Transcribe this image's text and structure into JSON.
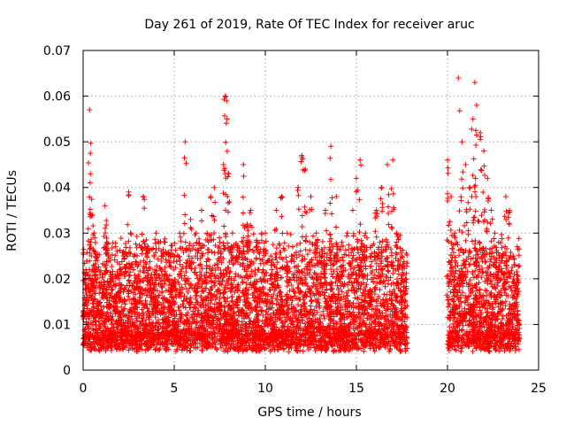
{
  "chart_data": {
    "type": "scatter",
    "title": "Day 261 of 2019, Rate Of TEC Index for receiver aruc",
    "xlabel": "GPS time / hours",
    "ylabel": "ROTI / TECUs",
    "xlim": [
      0,
      25
    ],
    "ylim": [
      0,
      0.07
    ],
    "x_ticks": [
      0,
      5,
      10,
      15,
      20,
      25
    ],
    "x_tick_labels": [
      "0",
      "5",
      "10",
      "15",
      "20",
      "25"
    ],
    "y_ticks": [
      0,
      0.01,
      0.02,
      0.03,
      0.04,
      0.05,
      0.06,
      0.07
    ],
    "y_tick_labels": [
      "0",
      "0.01",
      "0.02",
      "0.03",
      "0.04",
      "0.05",
      "0.06",
      "0.07"
    ],
    "grid": true,
    "marker": "+",
    "marker_color": "#ff0000",
    "data_gap_hours": [
      17.8,
      20.0
    ],
    "series": [
      {
        "x": [
          0.05,
          0.15,
          0.3,
          0.35,
          0.4,
          0.5,
          0.6,
          0.8,
          1.0,
          1.2,
          1.3,
          1.5,
          1.8,
          2.0,
          2.2,
          2.5,
          2.6,
          2.8,
          3.0,
          3.3,
          3.5,
          3.8,
          4.0,
          4.3,
          4.5,
          4.8,
          5.0,
          5.3,
          5.6,
          5.9,
          6.2,
          6.5,
          6.8,
          7.0,
          7.2,
          7.5,
          7.7,
          7.8,
          7.9,
          8.0,
          8.2,
          8.5,
          8.8,
          9.0,
          9.2,
          9.5,
          9.8,
          10.0,
          10.3,
          10.6,
          10.9,
          11.2,
          11.5,
          11.8,
          12.0,
          12.2,
          12.5,
          12.8,
          13.0,
          13.3,
          13.6,
          13.9,
          14.2,
          14.5,
          14.8,
          15.0,
          15.2,
          15.5,
          15.8,
          16.1,
          16.4,
          16.7,
          17.0,
          17.2,
          17.5,
          17.7,
          20.0,
          20.2,
          20.4,
          20.6,
          20.8,
          21.0,
          21.2,
          21.4,
          21.5,
          21.6,
          21.8,
          22.0,
          22.2,
          22.4,
          22.6,
          22.8,
          23.0,
          23.2,
          23.4,
          23.6,
          23.8
        ],
        "y": [
          0.013,
          0.022,
          0.02,
          0.057,
          0.043,
          0.034,
          0.03,
          0.015,
          0.012,
          0.036,
          0.028,
          0.02,
          0.016,
          0.022,
          0.025,
          0.039,
          0.03,
          0.018,
          0.02,
          0.038,
          0.025,
          0.02,
          0.03,
          0.022,
          0.028,
          0.018,
          0.025,
          0.03,
          0.05,
          0.033,
          0.03,
          0.035,
          0.03,
          0.038,
          0.04,
          0.028,
          0.045,
          0.06,
          0.055,
          0.043,
          0.03,
          0.025,
          0.045,
          0.032,
          0.035,
          0.028,
          0.03,
          0.03,
          0.025,
          0.035,
          0.038,
          0.03,
          0.025,
          0.04,
          0.047,
          0.044,
          0.038,
          0.03,
          0.025,
          0.035,
          0.049,
          0.038,
          0.028,
          0.03,
          0.035,
          0.042,
          0.046,
          0.03,
          0.025,
          0.035,
          0.04,
          0.045,
          0.046,
          0.03,
          0.025,
          0.02,
          0.046,
          0.038,
          0.03,
          0.064,
          0.05,
          0.045,
          0.04,
          0.055,
          0.063,
          0.058,
          0.052,
          0.048,
          0.042,
          0.035,
          0.03,
          0.028,
          0.025,
          0.038,
          0.035,
          0.025,
          0.02
        ]
      }
    ]
  }
}
